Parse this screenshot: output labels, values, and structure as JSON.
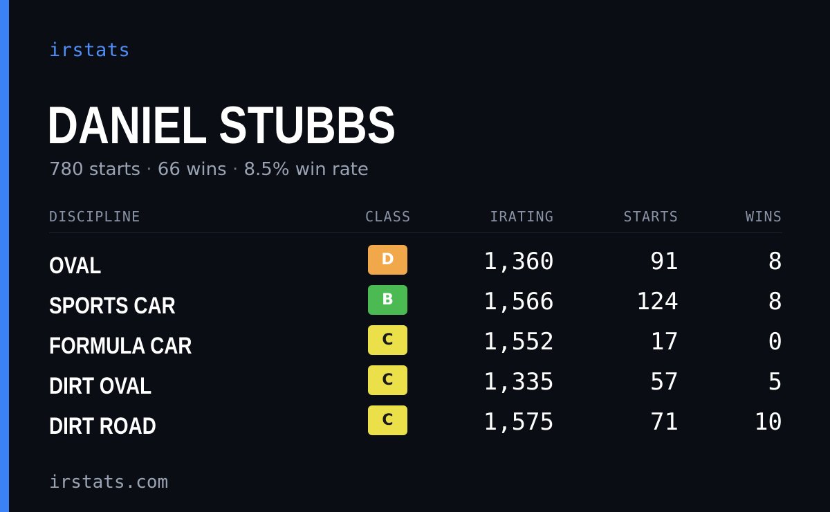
{
  "brand": "irstats",
  "driver": {
    "name": "DANIEL STUBBS",
    "starts": "780 starts",
    "wins": "66 wins",
    "win_rate": "8.5% win rate",
    "separator": "·"
  },
  "table": {
    "headers": {
      "discipline": "DISCIPLINE",
      "class": "CLASS",
      "irating": "IRATING",
      "starts": "STARTS",
      "wins": "WINS"
    },
    "rows": [
      {
        "discipline": "OVAL",
        "class": "D",
        "irating": "1,360",
        "starts": "91",
        "wins": "8"
      },
      {
        "discipline": "SPORTS CAR",
        "class": "B",
        "irating": "1,566",
        "starts": "124",
        "wins": "8"
      },
      {
        "discipline": "FORMULA CAR",
        "class": "C",
        "irating": "1,552",
        "starts": "17",
        "wins": "0"
      },
      {
        "discipline": "DIRT OVAL",
        "class": "C",
        "irating": "1,335",
        "starts": "57",
        "wins": "5"
      },
      {
        "discipline": "DIRT ROAD",
        "class": "C",
        "irating": "1,575",
        "starts": "71",
        "wins": "10"
      }
    ]
  },
  "class_colors": {
    "D": "#f0a84a",
    "B": "#4cba52",
    "C": "#ebe04a"
  },
  "accent_color": "#3b82f6",
  "footer": {
    "url": "irstats.com"
  }
}
